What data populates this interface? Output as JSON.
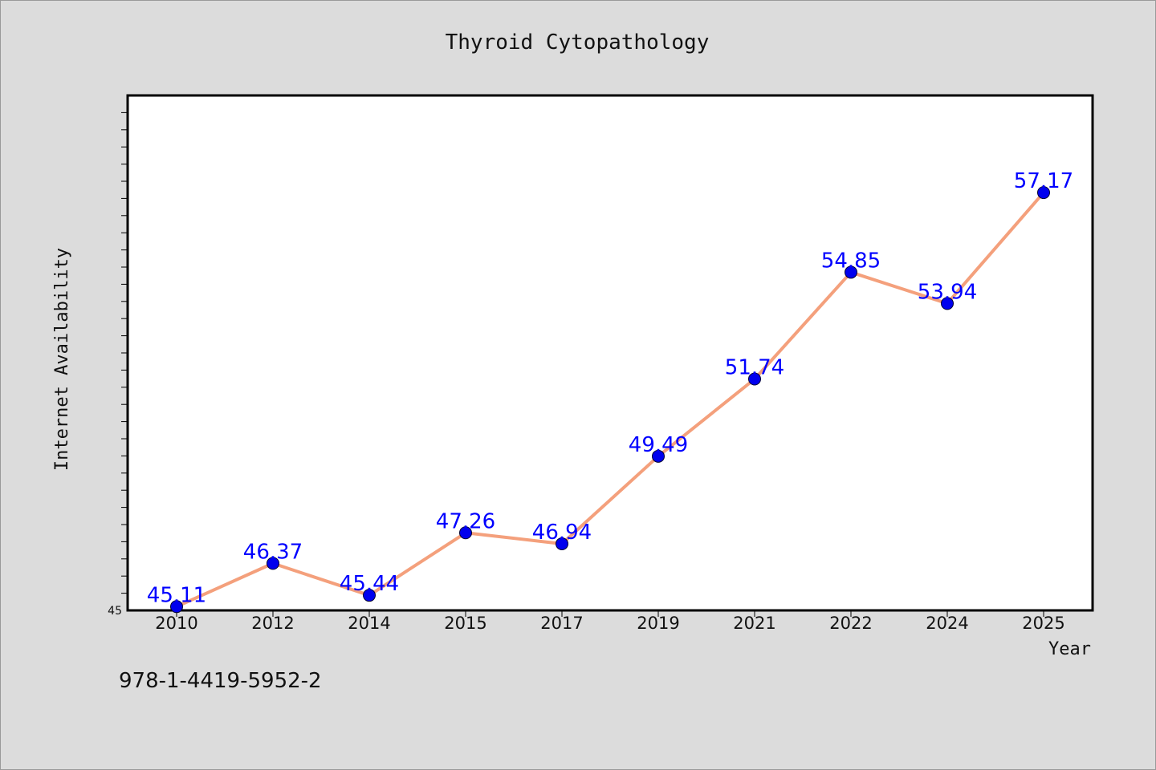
{
  "chart_data": {
    "type": "line",
    "title": "Thyroid Cytopathology",
    "xlabel": "Year",
    "ylabel": "Internet Availability",
    "categories": [
      "2010",
      "2012",
      "2014",
      "2015",
      "2017",
      "2019",
      "2021",
      "2022",
      "2024",
      "2025"
    ],
    "series": [
      {
        "values": [
          45.11,
          46.37,
          45.44,
          47.26,
          46.94,
          49.49,
          51.74,
          54.85,
          53.94,
          57.17
        ],
        "data_labels": [
          "45.11",
          "46.37",
          "45.44",
          "47.26",
          "46.94",
          "49.49",
          "51.74",
          "54.85",
          "53.94",
          "57.17"
        ]
      }
    ],
    "ylim": [
      45,
      60
    ],
    "y_tick_label": "45",
    "grid": false,
    "legend": "none",
    "colors": {
      "line": "#f4a07c",
      "marker": "#0000ee",
      "data_label": "#0000ff",
      "plot_background": "#ffffff",
      "figure_background": "#dcdcdc"
    }
  },
  "footnote": "978-1-4419-5952-2"
}
